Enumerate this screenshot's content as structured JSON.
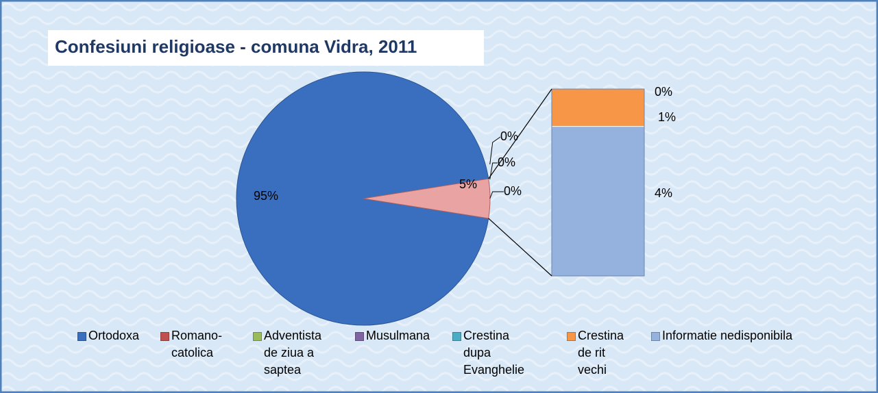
{
  "chart_data": {
    "type": "pie-of-pie",
    "title": "Confesiuni religioase - comuna Vidra, 2011",
    "categories": [
      "Ortodoxa",
      "Romano-catolica",
      "Adventista de ziua a saptea",
      "Musulmana",
      "Crestina dupa Evanghelie",
      "Crestina de rit vechi",
      "Informatie nedisponibila"
    ],
    "values": [
      95,
      0,
      0,
      0,
      0,
      1,
      4
    ],
    "value_labels": [
      "95%",
      "0%",
      "0%",
      "0%",
      "0%",
      "1%",
      "4%"
    ],
    "colors": [
      "#3a6fbf",
      "#c0504d",
      "#9bbb59",
      "#8064a2",
      "#4bacc6",
      "#f79646",
      "#95b1dd"
    ],
    "combined_value": 5,
    "combined_label": "5%",
    "combined_color": "#e9a3a3",
    "legend": "bottom"
  }
}
